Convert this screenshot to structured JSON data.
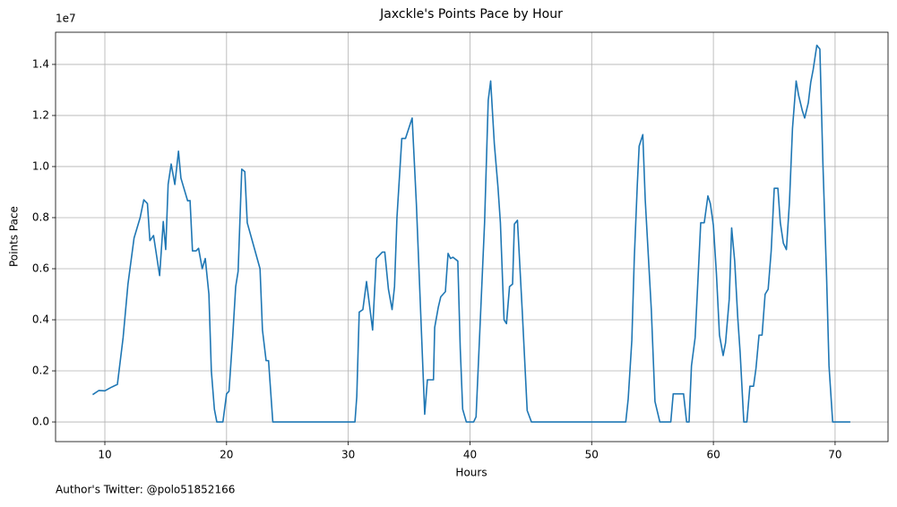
{
  "chart_data": {
    "type": "line",
    "title": "Jaxckle's Points Pace by Hour",
    "xlabel": "Hours",
    "ylabel": "Points Pace",
    "y_offset_label": "1e7",
    "footer": "Author's Twitter: @polo51852166",
    "color": "#1f77b4",
    "grid": true,
    "x": [
      9.0,
      9.5,
      10.0,
      10.5,
      11.03,
      11.5,
      11.9,
      12.4,
      12.9,
      13.2,
      13.5,
      13.7,
      14.0,
      14.5,
      14.8,
      15.0,
      15.2,
      15.45,
      15.75,
      16.05,
      16.25,
      16.8,
      17.0,
      17.2,
      17.5,
      17.7,
      18.0,
      18.25,
      18.55,
      18.75,
      19.0,
      19.2,
      19.7,
      20.0,
      20.2,
      20.5,
      20.75,
      20.95,
      21.25,
      21.5,
      21.7,
      22.75,
      22.95,
      23.25,
      23.45,
      23.8,
      30.55,
      30.7,
      30.9,
      31.2,
      31.5,
      32.0,
      32.3,
      32.8,
      33.0,
      33.3,
      33.6,
      33.8,
      34.0,
      34.4,
      34.7,
      35.25,
      35.6,
      36.28,
      36.5,
      37.0,
      37.1,
      37.4,
      37.6,
      37.98,
      38.2,
      38.4,
      38.6,
      39.0,
      39.2,
      39.4,
      39.7,
      40.3,
      40.5,
      41.2,
      41.5,
      41.7,
      42.0,
      42.3,
      42.5,
      42.8,
      43.0,
      43.25,
      43.5,
      43.65,
      43.9,
      44.3,
      44.7,
      45.05,
      52.8,
      53.0,
      53.3,
      53.5,
      53.75,
      53.9,
      54.2,
      54.4,
      54.9,
      55.2,
      55.6,
      56.5,
      56.7,
      57.55,
      57.8,
      58.0,
      58.2,
      58.5,
      58.96,
      59.25,
      59.55,
      59.75,
      60.0,
      60.25,
      60.5,
      60.8,
      61.0,
      61.3,
      61.5,
      61.75,
      62.0,
      62.2,
      62.5,
      62.75,
      63.0,
      63.3,
      63.5,
      63.75,
      64.0,
      64.25,
      64.5,
      64.75,
      65.0,
      65.3,
      65.5,
      65.75,
      66.0,
      66.25,
      66.5,
      66.8,
      67.0,
      67.3,
      67.5,
      67.8,
      68.0,
      68.2,
      68.5,
      68.75,
      69.0,
      69.3,
      69.5,
      69.8,
      71.25
    ],
    "values": [
      0.107,
      0.123,
      0.122,
      0.135,
      0.147,
      0.33,
      0.54,
      0.72,
      0.8,
      0.87,
      0.855,
      0.71,
      0.73,
      0.573,
      0.785,
      0.675,
      0.93,
      1.01,
      0.93,
      1.06,
      0.955,
      0.866,
      0.867,
      0.67,
      0.67,
      0.68,
      0.6,
      0.64,
      0.5,
      0.2,
      0.05,
      0.0,
      0.0,
      0.11,
      0.12,
      0.33,
      0.53,
      0.59,
      0.99,
      0.98,
      0.78,
      0.6,
      0.36,
      0.24,
      0.24,
      0.0,
      0.0,
      0.1,
      0.43,
      0.44,
      0.55,
      0.36,
      0.64,
      0.665,
      0.665,
      0.52,
      0.44,
      0.53,
      0.8,
      1.11,
      1.11,
      1.19,
      0.85,
      0.03,
      0.165,
      0.165,
      0.37,
      0.45,
      0.49,
      0.51,
      0.66,
      0.64,
      0.645,
      0.63,
      0.29,
      0.05,
      0.0,
      0.0,
      0.02,
      0.78,
      1.26,
      1.335,
      1.09,
      0.92,
      0.78,
      0.4,
      0.385,
      0.53,
      0.54,
      0.775,
      0.79,
      0.43,
      0.045,
      0.0,
      0.0,
      0.09,
      0.32,
      0.64,
      0.93,
      1.08,
      1.125,
      0.87,
      0.44,
      0.08,
      0.0,
      0.0,
      0.11,
      0.11,
      0.0,
      0.0,
      0.22,
      0.33,
      0.78,
      0.78,
      0.885,
      0.855,
      0.77,
      0.58,
      0.34,
      0.26,
      0.31,
      0.48,
      0.76,
      0.63,
      0.41,
      0.27,
      0.0,
      0.0,
      0.14,
      0.14,
      0.21,
      0.34,
      0.34,
      0.5,
      0.52,
      0.67,
      0.915,
      0.915,
      0.78,
      0.7,
      0.675,
      0.86,
      1.15,
      1.335,
      1.28,
      1.22,
      1.19,
      1.25,
      1.33,
      1.38,
      1.475,
      1.46,
      1.01,
      0.57,
      0.22,
      0.0,
      0.0
    ],
    "xlim": [
      5.95,
      74.35
    ],
    "xticks": [
      10,
      20,
      30,
      40,
      50,
      60,
      70
    ],
    "ylim": [
      -0.077,
      1.526
    ],
    "yticks": [
      {
        "value": 0,
        "label": "0.0"
      },
      0.2,
      0.4,
      0.6,
      0.8,
      {
        "value": 1,
        "label": "1.0"
      },
      1.2,
      1.4
    ]
  }
}
